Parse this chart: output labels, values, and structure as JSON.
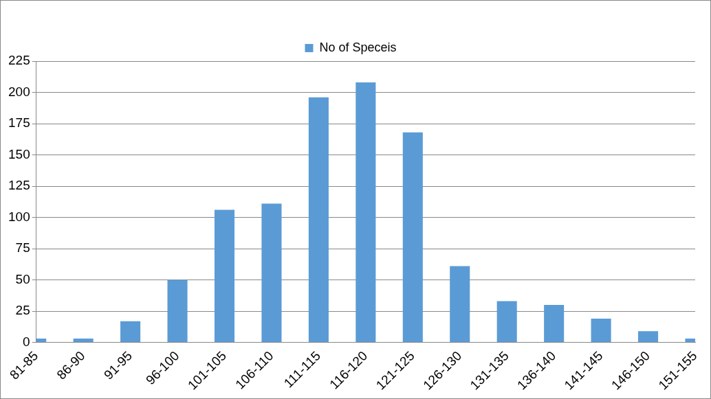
{
  "chart_data": {
    "type": "bar",
    "categories": [
      "81-85",
      "86-90",
      "91-95",
      "96-100",
      "101-105",
      "106-110",
      "111-115",
      "116-120",
      "121-125",
      "126-130",
      "131-135",
      "136-140",
      "141-145",
      "146-150",
      "151-155"
    ],
    "series": [
      {
        "name": "No of Speceis",
        "color": "#5b9bd5",
        "values": [
          3,
          3,
          17,
          50,
          106,
          111,
          196,
          208,
          168,
          61,
          33,
          30,
          19,
          9,
          3
        ]
      }
    ],
    "ylim": [
      0,
      225
    ],
    "yticks": [
      0,
      25,
      50,
      75,
      100,
      125,
      150,
      175,
      200,
      225
    ],
    "grid": "y",
    "legend": "top"
  }
}
